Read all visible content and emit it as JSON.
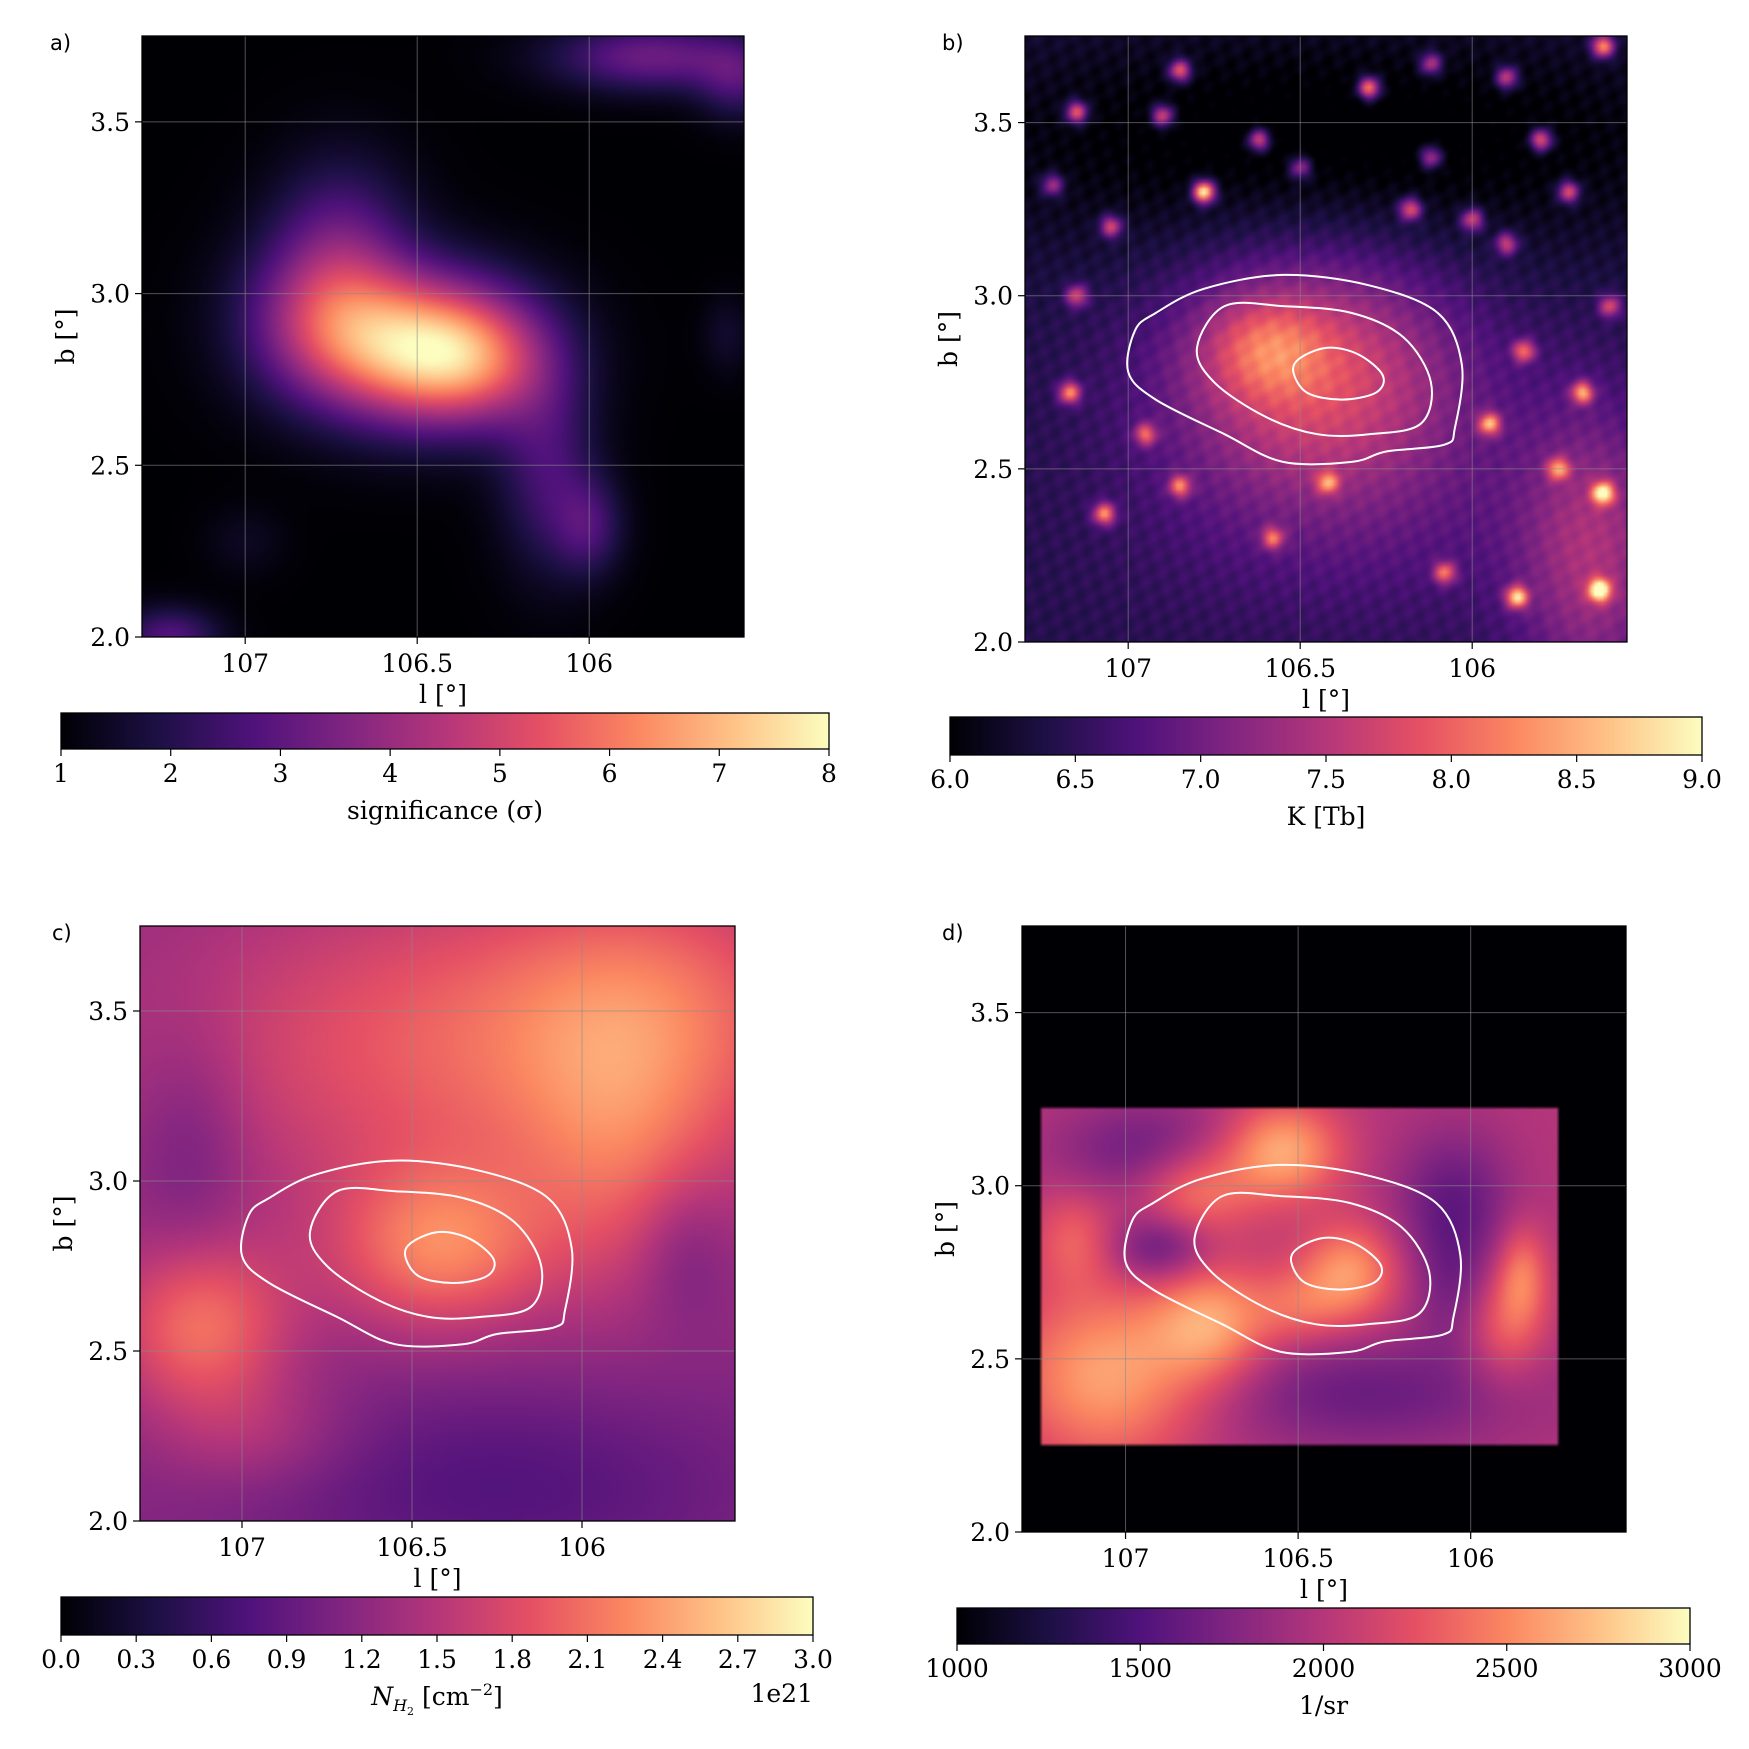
{
  "colors": {
    "colormap": [
      "#000004",
      "#1c1044",
      "#4f127b",
      "#812581",
      "#b5367a",
      "#e55064",
      "#fb8761",
      "#fec287",
      "#fcfdbf"
    ],
    "contour": "#ffffff",
    "grid": "#8a8a8a"
  },
  "chart_data": [
    {
      "panel": "a)",
      "type": "heatmap",
      "xlabel": "l [°]",
      "ylabel": "b [°]",
      "xlim": [
        107.3,
        105.55
      ],
      "ylim": [
        2.0,
        3.75
      ],
      "xticks": [
        {
          "v": 107,
          "t": "107"
        },
        {
          "v": 106.5,
          "t": "106.5"
        },
        {
          "v": 106,
          "t": "106"
        }
      ],
      "yticks": [
        {
          "v": 2.0,
          "t": "2.0"
        },
        {
          "v": 2.5,
          "t": "2.5"
        },
        {
          "v": 3.0,
          "t": "3.0"
        },
        {
          "v": 3.5,
          "t": "3.5"
        }
      ],
      "grid": true,
      "contours": false,
      "background_value": 0.0,
      "map_features": [
        {
          "l": 106.5,
          "b": 2.84,
          "sl": 0.22,
          "sb": 0.15,
          "amp": 0.75
        },
        {
          "l": 106.33,
          "b": 2.8,
          "sl": 0.16,
          "sb": 0.13,
          "amp": 0.32
        },
        {
          "l": 106.77,
          "b": 2.94,
          "sl": 0.17,
          "sb": 0.16,
          "amp": 0.35
        },
        {
          "l": 106.72,
          "b": 3.17,
          "sl": 0.14,
          "sb": 0.17,
          "amp": 0.22
        },
        {
          "l": 106.12,
          "b": 2.48,
          "sl": 0.1,
          "sb": 0.2,
          "amp": 0.22
        },
        {
          "l": 106.0,
          "b": 2.32,
          "sl": 0.07,
          "sb": 0.1,
          "amp": 0.2
        },
        {
          "l": 105.82,
          "b": 3.69,
          "sl": 0.2,
          "sb": 0.07,
          "amp": 0.32
        },
        {
          "l": 105.57,
          "b": 3.62,
          "sl": 0.08,
          "sb": 0.08,
          "amp": 0.2
        },
        {
          "l": 107.22,
          "b": 2.0,
          "sl": 0.1,
          "sb": 0.06,
          "amp": 0.26
        },
        {
          "l": 107.0,
          "b": 2.28,
          "sl": 0.08,
          "sb": 0.07,
          "amp": 0.06
        },
        {
          "l": 105.6,
          "b": 2.88,
          "sl": 0.05,
          "sb": 0.08,
          "amp": 0.08
        }
      ],
      "colorbar": {
        "label": "significance (σ)",
        "min": 1,
        "max": 8,
        "ticks": [
          {
            "v": 1,
            "t": "1"
          },
          {
            "v": 2,
            "t": "2"
          },
          {
            "v": 3,
            "t": "3"
          },
          {
            "v": 4,
            "t": "4"
          },
          {
            "v": 5,
            "t": "5"
          },
          {
            "v": 6,
            "t": "6"
          },
          {
            "v": 7,
            "t": "7"
          },
          {
            "v": 8,
            "t": "8"
          }
        ],
        "exponent": ""
      }
    },
    {
      "panel": "b)",
      "type": "heatmap",
      "xlabel": "l [°]",
      "ylabel": "b [°]",
      "xlim": [
        107.3,
        105.55
      ],
      "ylim": [
        2.0,
        3.75
      ],
      "xticks": [
        {
          "v": 107,
          "t": "107"
        },
        {
          "v": 106.5,
          "t": "106.5"
        },
        {
          "v": 106,
          "t": "106"
        }
      ],
      "yticks": [
        {
          "v": 2.0,
          "t": "2.0"
        },
        {
          "v": 2.5,
          "t": "2.5"
        },
        {
          "v": 3.0,
          "t": "3.0"
        },
        {
          "v": 3.5,
          "t": "3.5"
        }
      ],
      "grid": true,
      "contours": true,
      "background_value": 0.14,
      "map_features": [
        {
          "l": 106.45,
          "b": 2.78,
          "sl": 0.3,
          "sb": 0.25,
          "amp": 0.45
        },
        {
          "l": 106.6,
          "b": 2.85,
          "sl": 0.12,
          "sb": 0.1,
          "amp": 0.25
        },
        {
          "l": 105.65,
          "b": 2.25,
          "sl": 0.15,
          "sb": 0.3,
          "amp": 0.3
        },
        {
          "l": 106.3,
          "b": 2.35,
          "sl": 0.5,
          "sb": 0.25,
          "amp": 0.1
        },
        {
          "l": 106.4,
          "b": 3.45,
          "sl": 0.9,
          "sb": 0.25,
          "amp": -0.18
        }
      ],
      "point_sources": [
        [
          106.78,
          3.3,
          0.95
        ],
        [
          107.15,
          3.53,
          0.6
        ],
        [
          106.9,
          3.52,
          0.55
        ],
        [
          106.85,
          3.65,
          0.6
        ],
        [
          106.62,
          3.45,
          0.55
        ],
        [
          106.5,
          3.37,
          0.4
        ],
        [
          106.3,
          3.6,
          0.7
        ],
        [
          106.12,
          3.67,
          0.45
        ],
        [
          105.9,
          3.63,
          0.5
        ],
        [
          105.8,
          3.45,
          0.6
        ],
        [
          105.72,
          3.3,
          0.55
        ],
        [
          105.62,
          3.72,
          0.7
        ],
        [
          106.12,
          3.4,
          0.45
        ],
        [
          106.18,
          3.25,
          0.55
        ],
        [
          106.0,
          3.22,
          0.5
        ],
        [
          105.9,
          3.15,
          0.45
        ],
        [
          107.05,
          3.2,
          0.5
        ],
        [
          107.22,
          3.32,
          0.4
        ],
        [
          107.17,
          2.72,
          0.6
        ],
        [
          106.95,
          2.6,
          0.45
        ],
        [
          105.68,
          2.72,
          0.6
        ],
        [
          105.75,
          2.5,
          0.5
        ],
        [
          105.62,
          2.43,
          0.7
        ],
        [
          105.63,
          2.15,
          0.8
        ],
        [
          105.87,
          2.13,
          0.7
        ],
        [
          106.08,
          2.2,
          0.5
        ],
        [
          106.85,
          2.45,
          0.5
        ],
        [
          107.07,
          2.37,
          0.6
        ],
        [
          106.42,
          2.46,
          0.45
        ],
        [
          106.58,
          2.3,
          0.45
        ],
        [
          105.85,
          2.84,
          0.5
        ],
        [
          105.95,
          2.63,
          0.6
        ],
        [
          105.6,
          2.97,
          0.45
        ],
        [
          107.15,
          3.0,
          0.45
        ]
      ],
      "colorbar": {
        "label": "K [Tb]",
        "min": 6.0,
        "max": 9.0,
        "ticks": [
          {
            "v": 6.0,
            "t": "6.0"
          },
          {
            "v": 6.5,
            "t": "6.5"
          },
          {
            "v": 7.0,
            "t": "7.0"
          },
          {
            "v": 7.5,
            "t": "7.5"
          },
          {
            "v": 8.0,
            "t": "8.0"
          },
          {
            "v": 8.5,
            "t": "8.5"
          },
          {
            "v": 9.0,
            "t": "9.0"
          }
        ],
        "exponent": ""
      }
    },
    {
      "panel": "c)",
      "type": "heatmap",
      "xlabel": "l [°]",
      "ylabel": "b [°]",
      "xlim": [
        107.3,
        105.55
      ],
      "ylim": [
        2.0,
        3.75
      ],
      "xticks": [
        {
          "v": 107,
          "t": "107"
        },
        {
          "v": 106.5,
          "t": "106.5"
        },
        {
          "v": 106,
          "t": "106"
        }
      ],
      "yticks": [
        {
          "v": 2.0,
          "t": "2.0"
        },
        {
          "v": 2.5,
          "t": "2.5"
        },
        {
          "v": 3.0,
          "t": "3.0"
        },
        {
          "v": 3.5,
          "t": "3.5"
        }
      ],
      "grid": true,
      "contours": true,
      "background_value": 0.4,
      "map_features": [
        {
          "l": 106.2,
          "b": 3.4,
          "sl": 0.7,
          "sb": 0.35,
          "amp": 0.28
        },
        {
          "l": 105.8,
          "b": 3.55,
          "sl": 0.3,
          "sb": 0.25,
          "amp": 0.12
        },
        {
          "l": 107.12,
          "b": 2.57,
          "sl": 0.18,
          "sb": 0.18,
          "amp": 0.3
        },
        {
          "l": 106.42,
          "b": 2.8,
          "sl": 0.22,
          "sb": 0.17,
          "amp": 0.3
        },
        {
          "l": 105.9,
          "b": 3.05,
          "sl": 0.2,
          "sb": 0.3,
          "amp": 0.15
        },
        {
          "l": 106.25,
          "b": 2.1,
          "sl": 0.55,
          "sb": 0.22,
          "amp": -0.14
        },
        {
          "l": 107.15,
          "b": 3.1,
          "sl": 0.12,
          "sb": 0.25,
          "amp": -0.1
        },
        {
          "l": 106.95,
          "b": 2.25,
          "sl": 0.2,
          "sb": 0.12,
          "amp": 0.1
        },
        {
          "l": 105.7,
          "b": 2.8,
          "sl": 0.1,
          "sb": 0.15,
          "amp": -0.1
        }
      ],
      "colorbar": {
        "label": "N",
        "label_sub": "H",
        "label_sub2": "2",
        "label_rest": " [cm",
        "label_sup": "−2",
        "label_end": "]",
        "min": 0.0,
        "max": 3.0,
        "ticks": [
          {
            "v": 0.0,
            "t": "0.0"
          },
          {
            "v": 0.3,
            "t": "0.3"
          },
          {
            "v": 0.6,
            "t": "0.6"
          },
          {
            "v": 0.9,
            "t": "0.9"
          },
          {
            "v": 1.2,
            "t": "1.2"
          },
          {
            "v": 1.5,
            "t": "1.5"
          },
          {
            "v": 1.8,
            "t": "1.8"
          },
          {
            "v": 2.1,
            "t": "2.1"
          },
          {
            "v": 2.4,
            "t": "2.4"
          },
          {
            "v": 2.7,
            "t": "2.7"
          },
          {
            "v": 3.0,
            "t": "3.0"
          }
        ],
        "exponent": "1e21"
      }
    },
    {
      "panel": "d)",
      "type": "heatmap",
      "xlabel": "l [°]",
      "ylabel": "b [°]",
      "xlim": [
        107.3,
        105.55
      ],
      "ylim": [
        2.0,
        3.75
      ],
      "xticks": [
        {
          "v": 107,
          "t": "107"
        },
        {
          "v": 106.5,
          "t": "106.5"
        },
        {
          "v": 106,
          "t": "106"
        }
      ],
      "yticks": [
        {
          "v": 2.0,
          "t": "2.0"
        },
        {
          "v": 2.5,
          "t": "2.5"
        },
        {
          "v": 3.0,
          "t": "3.0"
        },
        {
          "v": 3.5,
          "t": "3.5"
        }
      ],
      "grid": true,
      "contours": true,
      "background_value": 0.0,
      "data_region": {
        "l_min": 105.75,
        "l_max": 107.25,
        "b_min": 2.25,
        "b_max": 3.22
      },
      "inside_value": 0.5,
      "map_features": [
        {
          "l": 107.05,
          "b": 2.45,
          "sl": 0.2,
          "sb": 0.18,
          "amp": 0.32
        },
        {
          "l": 106.75,
          "b": 2.6,
          "sl": 0.12,
          "sb": 0.12,
          "amp": 0.28
        },
        {
          "l": 106.55,
          "b": 3.1,
          "sl": 0.12,
          "sb": 0.1,
          "amp": 0.35
        },
        {
          "l": 106.8,
          "b": 3.0,
          "sl": 0.12,
          "sb": 0.1,
          "amp": 0.25
        },
        {
          "l": 106.35,
          "b": 2.75,
          "sl": 0.1,
          "sb": 0.1,
          "amp": 0.28
        },
        {
          "l": 106.5,
          "b": 2.65,
          "sl": 0.1,
          "sb": 0.08,
          "amp": 0.15
        },
        {
          "l": 106.3,
          "b": 2.4,
          "sl": 0.35,
          "sb": 0.12,
          "amp": -0.18
        },
        {
          "l": 106.9,
          "b": 3.1,
          "sl": 0.2,
          "sb": 0.1,
          "amp": -0.2
        },
        {
          "l": 106.9,
          "b": 2.82,
          "sl": 0.1,
          "sb": 0.07,
          "amp": -0.22
        },
        {
          "l": 106.05,
          "b": 2.95,
          "sl": 0.12,
          "sb": 0.15,
          "amp": -0.2
        },
        {
          "l": 105.9,
          "b": 2.6,
          "sl": 0.08,
          "sb": 0.12,
          "amp": 0.18
        },
        {
          "l": 105.85,
          "b": 2.75,
          "sl": 0.05,
          "sb": 0.1,
          "amp": 0.2
        },
        {
          "l": 107.15,
          "b": 2.85,
          "sl": 0.08,
          "sb": 0.1,
          "amp": 0.15
        },
        {
          "l": 106.05,
          "b": 2.7,
          "sl": 0.08,
          "sb": 0.12,
          "amp": -0.12
        }
      ],
      "colorbar": {
        "label": "1/sr",
        "min": 1000,
        "max": 3000,
        "ticks": [
          {
            "v": 1000,
            "t": "1000"
          },
          {
            "v": 1500,
            "t": "1500"
          },
          {
            "v": 2000,
            "t": "2000"
          },
          {
            "v": 2500,
            "t": "2500"
          },
          {
            "v": 3000,
            "t": "3000"
          }
        ],
        "exponent": ""
      }
    }
  ],
  "contour_levels": [
    [
      [
        106.92,
        2.95
      ],
      [
        106.78,
        3.02
      ],
      [
        106.55,
        3.06
      ],
      [
        106.3,
        3.03
      ],
      [
        106.1,
        2.95
      ],
      [
        106.03,
        2.8
      ],
      [
        106.05,
        2.62
      ],
      [
        106.08,
        2.57
      ],
      [
        106.25,
        2.55
      ],
      [
        106.35,
        2.52
      ],
      [
        106.55,
        2.52
      ],
      [
        106.72,
        2.6
      ],
      [
        106.92,
        2.7
      ],
      [
        107.0,
        2.78
      ],
      [
        106.98,
        2.9
      ]
    ],
    [
      [
        106.72,
        2.97
      ],
      [
        106.55,
        2.97
      ],
      [
        106.35,
        2.95
      ],
      [
        106.2,
        2.88
      ],
      [
        106.12,
        2.75
      ],
      [
        106.15,
        2.63
      ],
      [
        106.3,
        2.6
      ],
      [
        106.45,
        2.6
      ],
      [
        106.6,
        2.65
      ],
      [
        106.75,
        2.75
      ],
      [
        106.8,
        2.85
      ]
    ],
    [
      [
        106.5,
        2.82
      ],
      [
        106.42,
        2.85
      ],
      [
        106.33,
        2.83
      ],
      [
        106.26,
        2.77
      ],
      [
        106.28,
        2.72
      ],
      [
        106.38,
        2.7
      ],
      [
        106.48,
        2.72
      ],
      [
        106.52,
        2.78
      ]
    ]
  ]
}
